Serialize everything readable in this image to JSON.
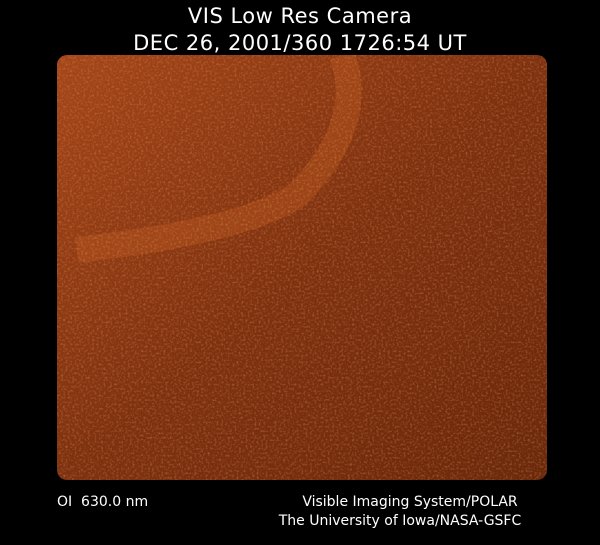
{
  "header": {
    "title": "VIS Low Res Camera",
    "timestamp": "DEC 26, 2001/360 1726:54 UT"
  },
  "image": {
    "description_colors": {
      "base": "#7a2f0c",
      "bright": "#c45a1c",
      "dark": "#000000"
    }
  },
  "footer": {
    "filter": "OI  630.0 nm",
    "system": "Visible Imaging System/POLAR",
    "institution": "The University of Iowa/NASA-GSFC"
  }
}
